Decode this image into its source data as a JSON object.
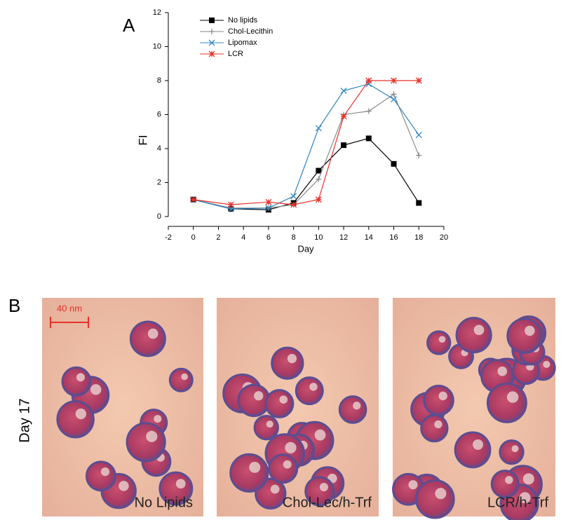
{
  "chart_data": {
    "type": "line",
    "x_label": "Day",
    "y_label": "FI",
    "xlim": [
      -2,
      20
    ],
    "xticks": [
      -2,
      0,
      2,
      4,
      6,
      8,
      10,
      12,
      14,
      16,
      18,
      20
    ],
    "ylim": [
      0,
      12
    ],
    "yticks": [
      0,
      2,
      4,
      6,
      8,
      10,
      12
    ],
    "legend": "upper left",
    "series": [
      {
        "name": "No lipids",
        "color": "#000000",
        "marker": "square",
        "x": [
          0,
          3,
          6,
          8,
          10,
          12,
          14,
          16,
          18
        ],
        "values": [
          1,
          0.45,
          0.4,
          0.8,
          2.7,
          4.2,
          4.6,
          3.1,
          0.8
        ]
      },
      {
        "name": "Chol-Lecithin",
        "color": "#8a8a8a",
        "marker": "plus",
        "x": [
          0,
          3,
          6,
          8,
          10,
          12,
          14,
          16,
          18
        ],
        "values": [
          1,
          0.5,
          0.5,
          0.7,
          2.2,
          6.0,
          6.2,
          7.2,
          3.6
        ]
      },
      {
        "name": "Lipomax",
        "color": "#2e86c1",
        "marker": "cross",
        "x": [
          0,
          3,
          6,
          8,
          10,
          12,
          14,
          16,
          18
        ],
        "values": [
          1,
          0.45,
          0.5,
          1.2,
          5.2,
          7.4,
          7.8,
          6.9,
          4.8
        ]
      },
      {
        "name": "LCR",
        "color": "#e8312a",
        "marker": "star",
        "x": [
          0,
          3,
          6,
          8,
          10,
          12,
          14,
          16,
          18
        ],
        "values": [
          1,
          0.7,
          0.85,
          0.7,
          1.0,
          5.9,
          8.0,
          8.0,
          8.0
        ]
      }
    ]
  },
  "panel_a_label": "A",
  "panel_b": {
    "label": "B",
    "row_label": "Day 17",
    "scale_bar": "40 nm",
    "images": [
      {
        "caption": "No Lipids"
      },
      {
        "caption": "Chol-Lec/h-Trf"
      },
      {
        "caption": "LCR/h-Trf"
      }
    ]
  }
}
